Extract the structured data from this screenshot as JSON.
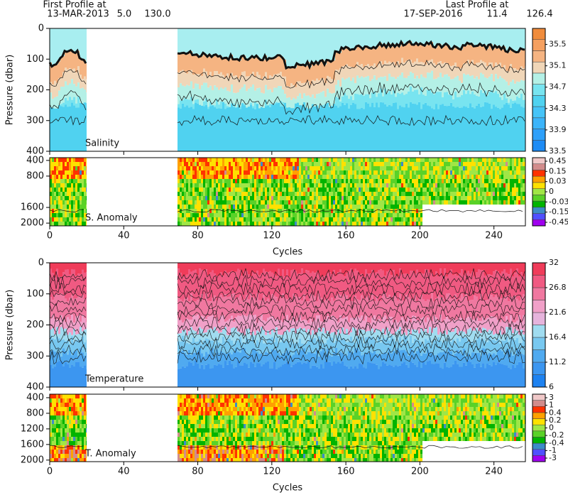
{
  "header": {
    "first_label": "First Profile at",
    "first_date": "13-MAR-2013",
    "first_lon": "5.0",
    "first_lat": "130.0",
    "last_label": "Last Profile at",
    "last_date": "17-SEP-2016",
    "last_lon": "11.4",
    "last_lat": "126.4"
  },
  "x_axis": {
    "label": "Cycles",
    "xlim": [
      0,
      257
    ],
    "xticks": [
      0,
      40,
      80,
      120,
      160,
      200,
      240
    ]
  },
  "panels": [
    {
      "name": "Salinity",
      "y_label": "Pressure (dbar)",
      "ylim": [
        0,
        400
      ],
      "yticks": [
        0,
        100,
        200,
        300,
        400
      ],
      "colorbar": {
        "clim": [
          33.5,
          35.8
        ],
        "ticks": [
          35.5,
          35.1,
          34.7,
          34.3,
          33.9,
          33.5
        ],
        "colors": [
          "#1e8cf5",
          "#2ea0fa",
          "#3cb4fa",
          "#46c4f8",
          "#50d2f0",
          "#78e4f0",
          "#b4f0e6",
          "#f0d6b8",
          "#f5b482",
          "#f5a060",
          "#f08c3c"
        ]
      }
    },
    {
      "name": "S. Anomaly",
      "ylim": [
        330,
        2070
      ],
      "yticks": [
        400,
        800,
        1600,
        2000
      ],
      "colorbar": {
        "ticks": [
          0.45,
          0.15,
          0.03,
          0,
          -0.03,
          -0.15,
          -0.45
        ],
        "colors": [
          "#a000f0",
          "#5050ff",
          "#3c8cc8",
          "#00b400",
          "#5ad228",
          "#a0e646",
          "#ffe100",
          "#ffa000",
          "#ff3200",
          "#d28c8c",
          "#f0c8c8"
        ]
      }
    },
    {
      "name": "Temperature",
      "y_label": "Pressure (dbar)",
      "ylim": [
        0,
        400
      ],
      "yticks": [
        0,
        100,
        200,
        300,
        400
      ],
      "colorbar": {
        "clim": [
          6,
          32
        ],
        "ticks": [
          32,
          26.8,
          21.6,
          16.4,
          11.2,
          6
        ],
        "colors": [
          "#1e82f0",
          "#3c96f0",
          "#50aaf0",
          "#78c8f0",
          "#a0dcf0",
          "#e6b4dc",
          "#f0a0c8",
          "#f078a0",
          "#f05a82",
          "#f03c5a"
        ]
      }
    },
    {
      "name": "T. Anomaly",
      "ylim": [
        310,
        2040
      ],
      "yticks": [
        400,
        800,
        1200,
        1600,
        2000
      ],
      "colorbar": {
        "ticks": [
          3,
          1,
          0.4,
          0.2,
          0,
          -0.2,
          -0.4,
          -1,
          -3
        ],
        "colors": [
          "#a000f0",
          "#5050ff",
          "#3c8cc8",
          "#00b400",
          "#5ad228",
          "#a0e646",
          "#ffe100",
          "#ffa000",
          "#ff3200",
          "#d28c8c",
          "#f0c8c8"
        ]
      }
    }
  ]
}
